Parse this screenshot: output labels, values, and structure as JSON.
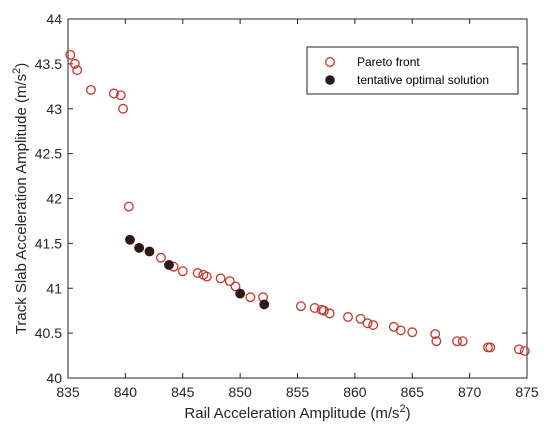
{
  "chart_data": {
    "type": "scatter",
    "xlabel": "Rail Acceleration Amplitude (m/s",
    "xlabel_sup": "2",
    "xlabel_end": ")",
    "ylabel": "Track Slab Acceleration Amplitude (m/s",
    "ylabel_sup": "2",
    "ylabel_end": ")",
    "xlim": [
      835,
      875
    ],
    "ylim": [
      40,
      44
    ],
    "x_ticks": [
      835,
      840,
      845,
      850,
      855,
      860,
      865,
      870,
      875
    ],
    "y_ticks": [
      40,
      40.5,
      41,
      41.5,
      42,
      42.5,
      43,
      43.5,
      44
    ],
    "grid": false,
    "legend_position": "top-right",
    "series": [
      {
        "name": "Pareto front",
        "marker": "open-circle",
        "color": "#c0392b",
        "points": [
          [
            835.2,
            43.6
          ],
          [
            835.6,
            43.5
          ],
          [
            835.8,
            43.43
          ],
          [
            837.0,
            43.21
          ],
          [
            839.0,
            43.17
          ],
          [
            839.6,
            43.15
          ],
          [
            839.8,
            43.0
          ],
          [
            840.3,
            41.91
          ],
          [
            840.4,
            41.54
          ],
          [
            841.2,
            41.45
          ],
          [
            842.1,
            41.41
          ],
          [
            843.1,
            41.34
          ],
          [
            843.8,
            41.26
          ],
          [
            844.2,
            41.24
          ],
          [
            845.0,
            41.19
          ],
          [
            846.3,
            41.17
          ],
          [
            846.8,
            41.15
          ],
          [
            847.1,
            41.13
          ],
          [
            848.3,
            41.11
          ],
          [
            849.1,
            41.08
          ],
          [
            849.6,
            41.02
          ],
          [
            850.0,
            40.94
          ],
          [
            850.9,
            40.9
          ],
          [
            852.0,
            40.9
          ],
          [
            852.1,
            40.82
          ],
          [
            855.3,
            40.8
          ],
          [
            856.5,
            40.78
          ],
          [
            857.1,
            40.76
          ],
          [
            857.3,
            40.75
          ],
          [
            857.8,
            40.72
          ],
          [
            859.4,
            40.68
          ],
          [
            860.5,
            40.66
          ],
          [
            861.1,
            40.61
          ],
          [
            861.6,
            40.59
          ],
          [
            863.4,
            40.57
          ],
          [
            864.0,
            40.53
          ],
          [
            865.0,
            40.51
          ],
          [
            867.0,
            40.49
          ],
          [
            867.1,
            40.41
          ],
          [
            868.9,
            40.41
          ],
          [
            869.4,
            40.41
          ],
          [
            871.6,
            40.34
          ],
          [
            871.8,
            40.34
          ],
          [
            874.3,
            40.32
          ],
          [
            874.8,
            40.3
          ]
        ]
      },
      {
        "name": "tentative optimal solution",
        "marker": "filled-circle",
        "color": "#2b1a1a",
        "points": [
          [
            840.4,
            41.54
          ],
          [
            841.2,
            41.45
          ],
          [
            842.1,
            41.41
          ],
          [
            843.8,
            41.26
          ],
          [
            850.0,
            40.94
          ],
          [
            852.1,
            40.82
          ]
        ]
      }
    ]
  },
  "legend": {
    "pareto_label": "Pareto front",
    "optimal_label": "tentative optimal solution"
  }
}
